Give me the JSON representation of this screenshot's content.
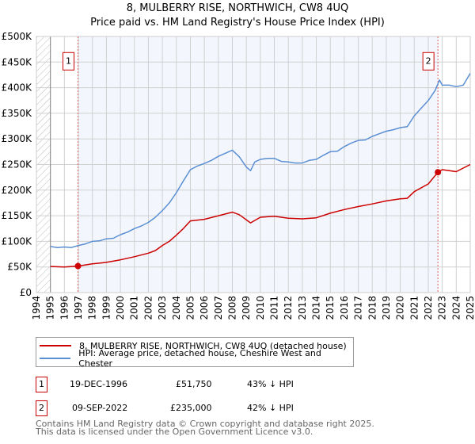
{
  "chart_data": {
    "type": "line",
    "title": "8, MULBERRY RISE, NORTHWICH, CW8 4UQ",
    "subtitle": "Price paid vs. HM Land Registry's House Price Index (HPI)",
    "xlim": [
      1994,
      2025
    ],
    "ylim": [
      0,
      500000
    ],
    "x_ticks": [
      "1994",
      "1995",
      "1996",
      "1997",
      "1998",
      "1999",
      "2000",
      "2001",
      "2002",
      "2003",
      "2004",
      "2005",
      "2006",
      "2007",
      "2008",
      "2009",
      "2010",
      "2011",
      "2012",
      "2013",
      "2014",
      "2015",
      "2016",
      "2017",
      "2018",
      "2019",
      "2020",
      "2021",
      "2022",
      "2023",
      "2024",
      "2025"
    ],
    "y_ticks": [
      {
        "v": 0,
        "label": "£0"
      },
      {
        "v": 50000,
        "label": "£50K"
      },
      {
        "v": 100000,
        "label": "£100K"
      },
      {
        "v": 150000,
        "label": "£150K"
      },
      {
        "v": 200000,
        "label": "£200K"
      },
      {
        "v": 250000,
        "label": "£250K"
      },
      {
        "v": 300000,
        "label": "£300K"
      },
      {
        "v": 350000,
        "label": "£350K"
      },
      {
        "v": 400000,
        "label": "£400K"
      },
      {
        "v": 450000,
        "label": "£450K"
      },
      {
        "v": 500000,
        "label": "£500K"
      }
    ],
    "grid": true,
    "series": [
      {
        "name": "8, MULBERRY RISE, NORTHWICH, CW8 4UQ (detached house)",
        "color": "#cc0000",
        "x": [
          1995,
          1996,
          1996.97,
          1998,
          1999,
          2000,
          2001,
          2002,
          2002.5,
          2003,
          2003.5,
          2004,
          2004.5,
          2005,
          2006,
          2007,
          2008,
          2008.5,
          2009.3,
          2010,
          2011,
          2012,
          2013,
          2014,
          2015,
          2016,
          2017,
          2018,
          2019,
          2020,
          2020.5,
          2021,
          2022,
          2022.69,
          2023,
          2024,
          2025
        ],
        "y": [
          51000,
          50000,
          51750,
          56000,
          59000,
          64000,
          70000,
          77000,
          82000,
          92000,
          100000,
          112000,
          125000,
          140000,
          143000,
          150000,
          157000,
          152000,
          136000,
          147000,
          149000,
          145000,
          144000,
          146000,
          155000,
          162000,
          168000,
          173000,
          179000,
          183000,
          184000,
          197000,
          212000,
          235000,
          240000,
          236000,
          250000
        ]
      },
      {
        "name": "HPI: Average price, detached house, Cheshire West and Chester",
        "color": "#5b8fd4",
        "x": [
          1995,
          1995.5,
          1996,
          1996.5,
          1997,
          1997.5,
          1998,
          1998.5,
          1999,
          1999.5,
          2000,
          2000.5,
          2001,
          2001.5,
          2002,
          2002.5,
          2003,
          2003.5,
          2004,
          2004.5,
          2005,
          2005.5,
          2006,
          2006.5,
          2007,
          2007.5,
          2008,
          2008.5,
          2009,
          2009.3,
          2009.6,
          2010,
          2010.5,
          2011,
          2011.5,
          2012,
          2012.5,
          2013,
          2013.5,
          2014,
          2014.5,
          2015,
          2015.5,
          2016,
          2016.5,
          2017,
          2017.5,
          2018,
          2018.5,
          2019,
          2019.5,
          2020,
          2020.5,
          2021,
          2021.5,
          2022,
          2022.5,
          2022.8,
          2023,
          2023.5,
          2024,
          2024.5,
          2025
        ],
        "y": [
          90000,
          88000,
          89000,
          88000,
          92000,
          95000,
          100000,
          101000,
          105000,
          106000,
          113000,
          118000,
          125000,
          130000,
          137000,
          147000,
          160000,
          175000,
          195000,
          218000,
          240000,
          247000,
          252000,
          258000,
          266000,
          272000,
          278000,
          265000,
          245000,
          238000,
          255000,
          260000,
          262000,
          262000,
          256000,
          255000,
          253000,
          253000,
          258000,
          260000,
          268000,
          275000,
          276000,
          285000,
          292000,
          297000,
          298000,
          305000,
          310000,
          315000,
          318000,
          322000,
          324000,
          345000,
          360000,
          375000,
          395000,
          415000,
          405000,
          405000,
          402000,
          405000,
          428000
        ]
      }
    ],
    "annotations": [
      {
        "label": "1",
        "x": 1996.97,
        "y": 51750
      },
      {
        "label": "2",
        "x": 2022.69,
        "y": 235000
      }
    ],
    "legend_placement": "below"
  },
  "legend": {
    "items": [
      {
        "label": "8, MULBERRY RISE, NORTHWICH, CW8 4UQ (detached house)",
        "color": "#cc0000"
      },
      {
        "label": "HPI: Average price, detached house, Cheshire West and Chester",
        "color": "#5b8fd4"
      }
    ]
  },
  "sales": [
    {
      "num": "1",
      "date": "19-DEC-1996",
      "price": "£51,750",
      "hpi": "43% ↓ HPI"
    },
    {
      "num": "2",
      "date": "09-SEP-2022",
      "price": "£235,000",
      "hpi": "42% ↓ HPI"
    }
  ],
  "footer": {
    "line1": "Contains HM Land Registry data © Crown copyright and database right 2025.",
    "line2": "This data is licensed under the Open Government Licence v3.0."
  }
}
